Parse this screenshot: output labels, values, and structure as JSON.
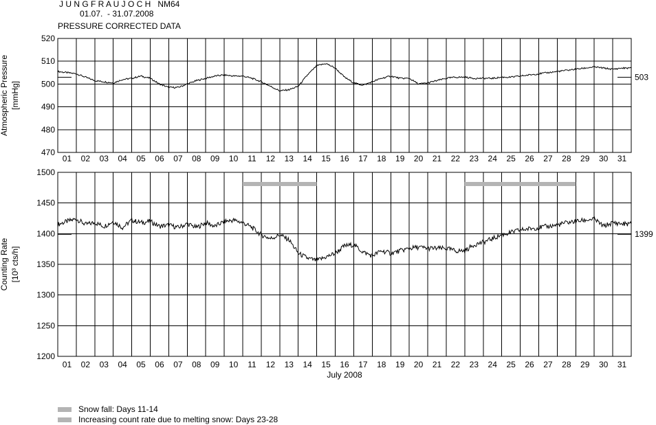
{
  "header": {
    "station": "J U N G F R A U J O C H   NM64",
    "period": "01.07.  - 31.07.2008",
    "subtitle": "PRESSURE CORRECTED DATA"
  },
  "legend": {
    "items": [
      {
        "label": "Snow fall: Days 11-14",
        "color": "#b4b4b4"
      },
      {
        "label": "Increasing count rate due to melting snow: Days 23-28",
        "color": "#b4b4b4"
      }
    ]
  },
  "chart_data": [
    {
      "type": "line",
      "title": "",
      "ylabel": [
        "Atmospheric Pressure",
        "[mmHg]"
      ],
      "xlabel": "",
      "x_ticks": [
        "01",
        "02",
        "03",
        "04",
        "05",
        "06",
        "07",
        "08",
        "09",
        "10",
        "11",
        "12",
        "13",
        "14",
        "15",
        "16",
        "17",
        "18",
        "19",
        "20",
        "21",
        "22",
        "23",
        "24",
        "25",
        "26",
        "27",
        "28",
        "29",
        "30",
        "31"
      ],
      "y_ticks": [
        470,
        480,
        490,
        500,
        510,
        520
      ],
      "ylim": [
        470,
        520
      ],
      "xlim_days": [
        1,
        32
      ],
      "grid": true,
      "mean_label": "503",
      "mean_value": 503,
      "series": [
        {
          "x": [
            1.0,
            1.5,
            2.0,
            2.5,
            3.0,
            3.5,
            4.0,
            4.5,
            5.0,
            5.5,
            6.0,
            6.5,
            7.0,
            7.5,
            8.0,
            8.5,
            9.0,
            9.5,
            10.0,
            10.5,
            11.0,
            11.5,
            12.0,
            12.5,
            13.0,
            13.5,
            14.0,
            14.5,
            15.0,
            15.5,
            16.0,
            16.5,
            17.0,
            17.5,
            18.0,
            18.5,
            19.0,
            19.5,
            20.0,
            20.5,
            21.0,
            21.5,
            22.0,
            22.5,
            23.0,
            23.5,
            24.0,
            24.5,
            25.0,
            25.5,
            26.0,
            26.5,
            27.0,
            27.5,
            28.0,
            28.5,
            29.0,
            29.5,
            30.0,
            30.5,
            31.0,
            31.5,
            32.0
          ],
          "y": [
            505.5,
            505.0,
            504.5,
            503.0,
            501.5,
            501.0,
            500.5,
            502.0,
            502.5,
            503.5,
            502.5,
            500.0,
            498.5,
            498.5,
            500.0,
            501.5,
            502.5,
            503.5,
            504.0,
            503.5,
            503.5,
            502.5,
            501.0,
            499.0,
            497.0,
            497.5,
            499.0,
            504.0,
            508.0,
            509.0,
            507.0,
            503.0,
            500.5,
            499.5,
            501.0,
            502.5,
            503.5,
            502.5,
            502.5,
            500.0,
            500.5,
            501.5,
            502.5,
            503.0,
            503.0,
            502.5,
            502.5,
            502.5,
            503.0,
            503.0,
            503.5,
            504.0,
            504.5,
            505.0,
            505.5,
            506.0,
            506.5,
            507.0,
            507.5,
            507.0,
            506.5,
            507.0,
            507.0
          ]
        }
      ]
    },
    {
      "type": "line",
      "title": "",
      "ylabel": [
        "Counting Rate",
        "[10³ cts/h]"
      ],
      "xlabel": "July 2008",
      "x_ticks": [
        "01",
        "02",
        "03",
        "04",
        "05",
        "06",
        "07",
        "08",
        "09",
        "10",
        "11",
        "12",
        "13",
        "14",
        "15",
        "16",
        "17",
        "18",
        "19",
        "20",
        "21",
        "22",
        "23",
        "24",
        "25",
        "26",
        "27",
        "28",
        "29",
        "30",
        "31"
      ],
      "y_ticks": [
        1200,
        1250,
        1300,
        1350,
        1400,
        1450,
        1500
      ],
      "ylim": [
        1200,
        1500
      ],
      "xlim_days": [
        1,
        32
      ],
      "grid": true,
      "mean_label": "1399",
      "mean_value": 1399,
      "bands": [
        {
          "from_day": 11,
          "to_day": 15,
          "value": 1481,
          "color": "#b4b4b4"
        },
        {
          "from_day": 23,
          "to_day": 29,
          "value": 1481,
          "color": "#b4b4b4"
        }
      ],
      "series": [
        {
          "x": [
            1.0,
            1.5,
            2.0,
            2.5,
            3.0,
            3.5,
            4.0,
            4.5,
            5.0,
            5.5,
            6.0,
            6.5,
            7.0,
            7.5,
            8.0,
            8.5,
            9.0,
            9.5,
            10.0,
            10.5,
            11.0,
            11.5,
            12.0,
            12.5,
            13.0,
            13.5,
            14.0,
            14.5,
            15.0,
            15.5,
            16.0,
            16.5,
            17.0,
            17.5,
            18.0,
            18.5,
            19.0,
            19.5,
            20.0,
            20.5,
            21.0,
            21.5,
            22.0,
            22.5,
            23.0,
            23.5,
            24.0,
            24.5,
            25.0,
            25.5,
            26.0,
            26.5,
            27.0,
            27.5,
            28.0,
            28.5,
            29.0,
            29.5,
            30.0,
            30.5,
            31.0,
            31.5,
            32.0
          ],
          "y": [
            1415,
            1420,
            1424,
            1415,
            1418,
            1412,
            1420,
            1410,
            1422,
            1418,
            1420,
            1412,
            1414,
            1410,
            1416,
            1410,
            1418,
            1412,
            1420,
            1422,
            1418,
            1410,
            1398,
            1392,
            1398,
            1390,
            1368,
            1360,
            1356,
            1362,
            1368,
            1380,
            1382,
            1370,
            1364,
            1372,
            1368,
            1372,
            1376,
            1378,
            1376,
            1376,
            1376,
            1372,
            1372,
            1382,
            1386,
            1392,
            1398,
            1402,
            1406,
            1408,
            1410,
            1412,
            1414,
            1418,
            1420,
            1422,
            1424,
            1412,
            1418,
            1416,
            1416
          ]
        }
      ]
    }
  ]
}
